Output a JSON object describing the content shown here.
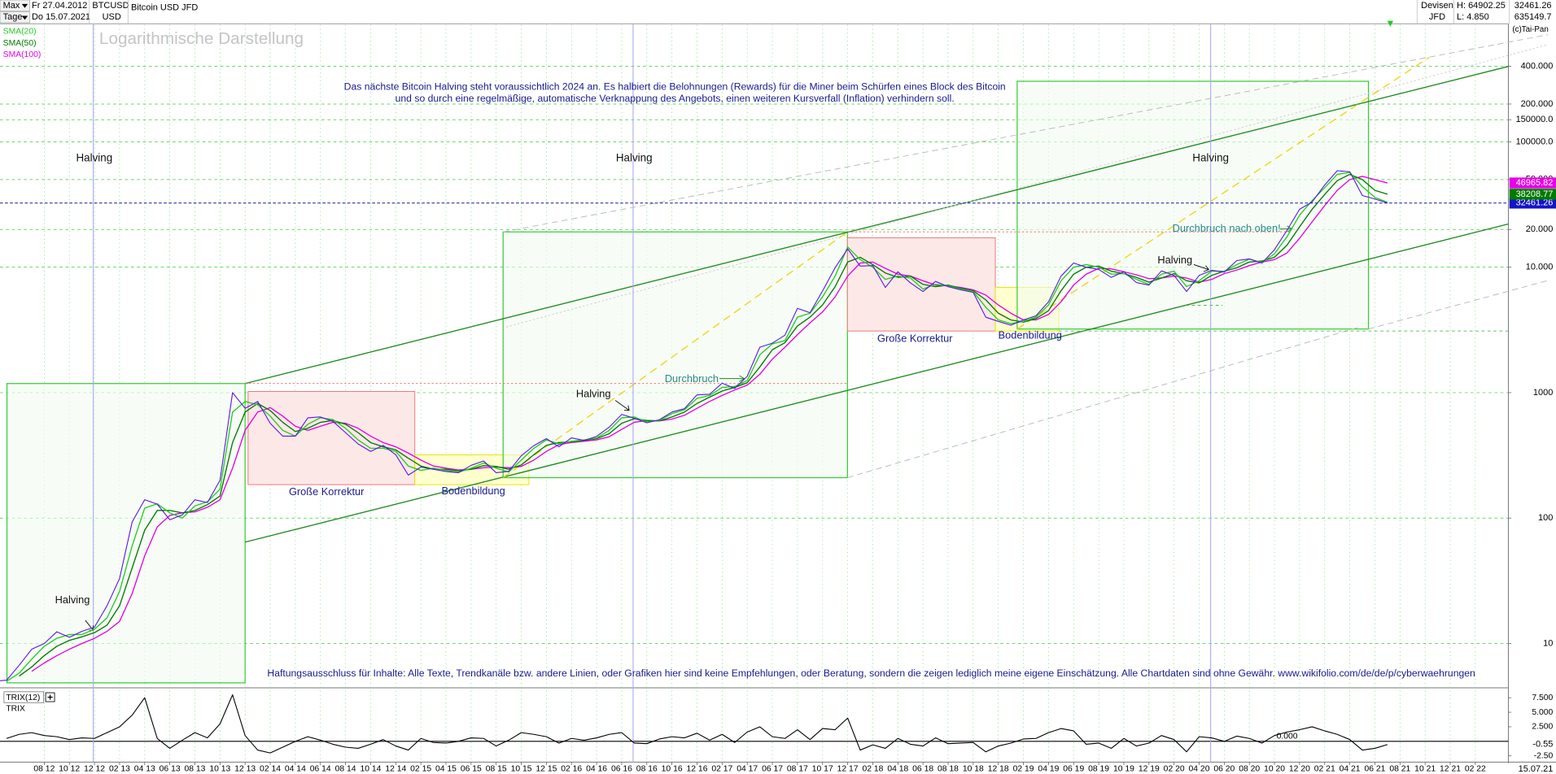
{
  "header": {
    "range": "Max",
    "interval": "Tage",
    "start_date": "Fr 27.04.2012",
    "end_date": "Do 15.07.2021",
    "symbol": "BTCUSD",
    "currency": "USD",
    "group": "Devisen",
    "broker": "JFD",
    "high": "H: 64902.25",
    "low": "L: 4.850",
    "last": "32461.26",
    "volume": "635149.7",
    "copyright": "(c)Tai-Pan",
    "cursor_date": "15.07.21"
  },
  "chart_data": {
    "type": "line",
    "log_scale": true,
    "grid": true,
    "categories": [
      null,
      null,
      null,
      null,
      "08 12",
      null,
      "10 12",
      null,
      "12 12",
      null,
      "02 13",
      null,
      "04 13",
      null,
      "06 13",
      null,
      "08 13",
      null,
      "10 13",
      null,
      "12 13",
      null,
      "02 14",
      null,
      "04 14",
      null,
      "06 14",
      null,
      "08 14",
      null,
      "10 14",
      null,
      "12 14",
      null,
      "02 15",
      null,
      "04 15",
      null,
      "06 15",
      null,
      "08 15",
      null,
      "10 15",
      null,
      "12 15",
      null,
      "02 16",
      null,
      "04 16",
      null,
      "06 16",
      null,
      "08 16",
      null,
      "10 16",
      null,
      "12 16",
      null,
      "02 17",
      null,
      "04 17",
      null,
      "06 17",
      null,
      "08 17",
      null,
      "10 17",
      null,
      "12 17",
      null,
      "02 18",
      null,
      "04 18",
      null,
      "06 18",
      null,
      "08 18",
      null,
      "10 18",
      null,
      "12 18",
      null,
      "02 19",
      null,
      "04 19",
      null,
      "06 19",
      null,
      "08 19",
      null,
      "10 19",
      null,
      "12 19",
      null,
      "02 20",
      null,
      "04 20",
      null,
      "06 20",
      null,
      "08 20",
      null,
      "10 20",
      null,
      "12 20",
      null,
      "02 21",
      null,
      "04 21",
      null,
      "06 21",
      null,
      "08 21",
      null,
      "10 21",
      null,
      "12 21",
      null,
      "02 22"
    ],
    "series": [
      {
        "name": "Bitcoin USD JFD",
        "color": "#5a14e6",
        "values": [
          5,
          5.1,
          6.7,
          9,
          10,
          12.4,
          11.2,
          12.5,
          13.5,
          20,
          33,
          93,
          140,
          129,
          97,
          106,
          140,
          133,
          200,
          1000,
          750,
          850,
          570,
          450,
          450,
          630,
          640,
          590,
          480,
          390,
          340,
          380,
          320,
          220,
          255,
          245,
          235,
          230,
          263,
          285,
          230,
          236,
          314,
          378,
          430,
          370,
          436,
          416,
          448,
          530,
          670,
          625,
          575,
          608,
          700,
          745,
          960,
          970,
          1190,
          1080,
          1350,
          2300,
          2480,
          2870,
          4700,
          4340,
          6470,
          9900,
          14000,
          10200,
          10300,
          6900,
          9200,
          7500,
          6400,
          7700,
          7000,
          6600,
          6300,
          4000,
          3700,
          3450,
          3800,
          4100,
          5300,
          8500,
          10800,
          10000,
          9600,
          8300,
          9200,
          7550,
          7200,
          9350,
          8600,
          6400,
          8600,
          9450,
          9140,
          11300,
          11650,
          10780,
          13800,
          19700,
          29000,
          33100,
          45200,
          58800,
          57700,
          37300,
          35000,
          32461.26,
          null,
          null,
          null,
          null,
          null,
          null,
          null
        ]
      },
      {
        "name": "SMA(20)",
        "color": "#22cc22",
        "values": [
          null,
          5,
          5.8,
          7.5,
          9.5,
          11,
          11.8,
          11.8,
          13,
          16,
          26,
          60,
          120,
          130,
          110,
          100,
          125,
          135,
          170,
          700,
          850,
          800,
          650,
          500,
          450,
          560,
          630,
          610,
          520,
          420,
          360,
          360,
          340,
          260,
          240,
          250,
          240,
          232,
          250,
          275,
          250,
          233,
          290,
          360,
          420,
          390,
          410,
          420,
          435,
          500,
          630,
          640,
          585,
          600,
          680,
          730,
          900,
          950,
          1100,
          1120,
          1250,
          2000,
          2450,
          2600,
          4000,
          4300,
          5800,
          8500,
          14500,
          11500,
          10000,
          8000,
          8500,
          8200,
          6700,
          7300,
          7100,
          6700,
          6400,
          4800,
          3800,
          3550,
          3700,
          4000,
          5000,
          7800,
          10000,
          10500,
          10000,
          8800,
          8900,
          8000,
          7300,
          8800,
          9300,
          7000,
          7800,
          9300,
          9300,
          10500,
          11600,
          10900,
          12800,
          17500,
          26000,
          34000,
          43000,
          55000,
          57000,
          44000,
          36000,
          33000,
          null,
          null,
          null,
          null,
          null,
          null,
          null
        ]
      },
      {
        "name": "SMA(50)",
        "color": "#007a00",
        "values": [
          null,
          null,
          5.5,
          6.5,
          8,
          9.5,
          10.6,
          11.3,
          12.2,
          14,
          20,
          40,
          80,
          115,
          115,
          110,
          115,
          128,
          150,
          400,
          700,
          820,
          720,
          580,
          490,
          520,
          580,
          600,
          560,
          480,
          400,
          370,
          350,
          300,
          260,
          245,
          245,
          238,
          245,
          262,
          258,
          245,
          265,
          320,
          380,
          400,
          405,
          415,
          430,
          470,
          570,
          620,
          600,
          595,
          640,
          700,
          820,
          920,
          1030,
          1100,
          1200,
          1600,
          2200,
          2500,
          3400,
          4000,
          5000,
          7000,
          11000,
          12000,
          10500,
          9000,
          8300,
          8500,
          7300,
          7000,
          7200,
          6800,
          6500,
          5500,
          4300,
          3800,
          3650,
          3900,
          4500,
          6500,
          8800,
          10000,
          10200,
          9300,
          8900,
          8300,
          7600,
          8200,
          8900,
          7800,
          7500,
          8600,
          9300,
          9900,
          11000,
          11200,
          12000,
          15000,
          21000,
          29000,
          38000,
          49000,
          55000,
          50000,
          41000,
          38208.77,
          null,
          null,
          null,
          null,
          null,
          null,
          null
        ]
      },
      {
        "name": "SMA(100)",
        "color": "#e600e6",
        "values": [
          null,
          null,
          null,
          6,
          7,
          8,
          9,
          10,
          11,
          12.5,
          15,
          25,
          50,
          85,
          105,
          110,
          112,
          122,
          140,
          250,
          500,
          700,
          760,
          650,
          540,
          500,
          540,
          580,
          570,
          520,
          450,
          400,
          370,
          330,
          290,
          260,
          250,
          242,
          245,
          252,
          255,
          252,
          258,
          290,
          340,
          385,
          400,
          410,
          420,
          445,
          510,
          580,
          600,
          595,
          615,
          660,
          750,
          850,
          950,
          1050,
          1150,
          1400,
          1850,
          2300,
          2900,
          3600,
          4400,
          5800,
          8500,
          10800,
          11000,
          9800,
          8800,
          8500,
          7800,
          7200,
          7100,
          6900,
          6600,
          6000,
          5000,
          4300,
          3800,
          3800,
          4200,
          5300,
          7200,
          8800,
          9800,
          9700,
          9200,
          8700,
          8100,
          8200,
          8500,
          8200,
          7600,
          8000,
          8900,
          9500,
          10300,
          11000,
          11500,
          13000,
          17000,
          23000,
          31000,
          41000,
          50000,
          53000,
          50000,
          46965.82,
          null,
          null,
          null,
          null,
          null,
          null,
          null
        ]
      }
    ],
    "ylim": [
      4.6,
      857000
    ],
    "yticks": [
      10,
      100,
      1000,
      {
        "value": 10000,
        "label": "10.000"
      },
      {
        "value": 20000,
        "label": "20.000"
      },
      {
        "value": 50000,
        "label": "50.000"
      },
      {
        "value": 100000,
        "label": "100000.0"
      },
      {
        "value": 150000,
        "label": "150000.0"
      },
      {
        "value": 200000,
        "label": "200.000"
      },
      {
        "value": 400000,
        "label": "400.000"
      }
    ],
    "annotations": [
      {
        "text": "Logarithmische Darstellung"
      },
      {
        "text": "Das nächste Bitcoin Halving steht voraussichtlich 2024 an. Es halbiert die Belohnungen (Rewards) für die Miner beim Schürfen eines Block des Bitcoin"
      },
      {
        "text": "und so durch eine regelmäßige, automatische Verknappung des Angebots, einen weiteren Kursverfall (Inflation) verhindern soll."
      },
      {
        "text": "Halving"
      },
      {
        "text": "Halving"
      },
      {
        "text": "Halving"
      },
      {
        "text": "Halving"
      },
      {
        "text": "Halving"
      },
      {
        "text": "Halving"
      },
      {
        "text": "Große Korrektur"
      },
      {
        "text": "Bodenbildung"
      },
      {
        "text": "Große Korrektur"
      },
      {
        "text": "Bodenbildung"
      },
      {
        "text": "Durchbruch"
      },
      {
        "text": "Durchbruch nach oben!"
      },
      {
        "text": "Haftungsausschluss für Inhalte: Alle Texte, Trendkanäle bzw. andere Linien, oder Grafiken hier sind keine Empfehlungen, oder Beratung, sondern die zeigen lediglich meine eigene Einschätzung. Alle Chartdaten sind ohne Gewähr.  www.wikifolio.com/de/de/p/cyberwaehrungen"
      }
    ],
    "trix": {
      "name": "TRIX(12)",
      "label": "TRIX",
      "color": "#000000",
      "values": [
        null,
        0.5,
        1.2,
        1.5,
        1.0,
        0.8,
        0.3,
        0.6,
        0.5,
        1.5,
        2.5,
        4.5,
        7.5,
        0.5,
        -1.2,
        0.2,
        1.5,
        0.6,
        3.0,
        8.0,
        1.0,
        -1.5,
        -2.0,
        -1.0,
        0.0,
        0.8,
        0.2,
        -0.5,
        -1.0,
        -1.2,
        -0.5,
        0.3,
        -0.8,
        -1.5,
        0.5,
        -0.2,
        -0.3,
        0.0,
        0.6,
        0.5,
        -0.8,
        0.2,
        1.5,
        1.2,
        0.8,
        -0.3,
        0.5,
        0.2,
        0.6,
        1.2,
        1.5,
        -0.3,
        -0.4,
        0.4,
        0.8,
        0.6,
        1.4,
        0.2,
        1.2,
        -0.2,
        1.6,
        2.5,
        0.8,
        0.5,
        2.0,
        0.3,
        2.2,
        2.0,
        4.0,
        -1.5,
        -0.6,
        -1.2,
        0.5,
        -0.5,
        -0.8,
        0.6,
        -0.4,
        -0.3,
        -0.2,
        -1.8,
        -0.8,
        -0.3,
        0.4,
        0.5,
        1.5,
        2.2,
        1.8,
        -0.5,
        -0.3,
        -1.2,
        0.5,
        -0.8,
        -0.3,
        1.0,
        0.3,
        -1.8,
        0.8,
        0.6,
        0.0,
        0.9,
        0.5,
        -0.3,
        1.0,
        1.6,
        2.0,
        2.5,
        1.8,
        1.2,
        0.3,
        -1.5,
        -1.2,
        -0.55,
        null,
        null,
        null,
        null,
        null,
        null,
        null
      ],
      "ylim": [
        -3.4,
        8.7
      ],
      "yticks": [
        {
          "value": -2.5,
          "label": "-2.50"
        },
        {
          "value": 0,
          "label": "0.000"
        },
        {
          "value": 2.5,
          "label": "2.500"
        },
        {
          "value": 5,
          "label": "5.000"
        },
        {
          "value": 7.5,
          "label": "7.500"
        }
      ]
    }
  }
}
